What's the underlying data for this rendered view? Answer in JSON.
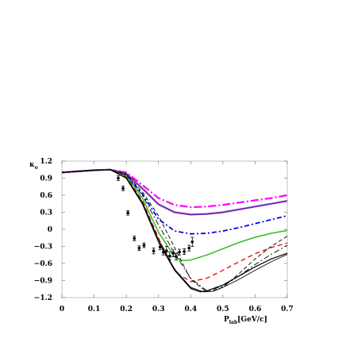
{
  "chart_data": {
    "type": "line",
    "xlabel": "P",
    "xlabel_sub": "lab",
    "xlabel_unit": "[GeV/c]",
    "ylabel": "κ",
    "ylabel_sub": "o",
    "xlim": [
      0,
      0.7
    ],
    "ylim": [
      -1.2,
      1.2
    ],
    "x_ticks": [
      "0",
      "0.1",
      "0.2",
      "0.3",
      "0.4",
      "0.5",
      "0.6",
      "0.7"
    ],
    "y_ticks": [
      "1.2",
      "0.9",
      "0.6",
      "0.3",
      "0",
      "−0.3",
      "−0.6",
      "−0.9",
      "−1.2"
    ],
    "grid": false,
    "series": [
      {
        "color": "#ff00ff",
        "dash": "10,3,2,3",
        "width": 2.2,
        "x": [
          0,
          0.05,
          0.1,
          0.15,
          0.2,
          0.25,
          0.3,
          0.35,
          0.4,
          0.45,
          0.5,
          0.55,
          0.6,
          0.65,
          0.7
        ],
        "y": [
          1.0,
          1.02,
          1.04,
          1.05,
          1.0,
          0.78,
          0.55,
          0.43,
          0.39,
          0.4,
          0.43,
          0.47,
          0.51,
          0.55,
          0.6
        ]
      },
      {
        "color": "#7a2fb0",
        "dash": "",
        "width": 2.2,
        "x": [
          0,
          0.05,
          0.1,
          0.15,
          0.2,
          0.25,
          0.3,
          0.35,
          0.4,
          0.45,
          0.5,
          0.55,
          0.6,
          0.65,
          0.7
        ],
        "y": [
          1.0,
          1.02,
          1.04,
          1.05,
          0.98,
          0.72,
          0.44,
          0.3,
          0.26,
          0.27,
          0.3,
          0.35,
          0.4,
          0.45,
          0.5
        ]
      },
      {
        "color": "#0000ee",
        "dash": "6,3,2,3",
        "width": 1.8,
        "x": [
          0,
          0.05,
          0.1,
          0.15,
          0.2,
          0.25,
          0.3,
          0.35,
          0.4,
          0.45,
          0.5,
          0.55,
          0.6,
          0.65,
          0.7
        ],
        "y": [
          1.0,
          1.02,
          1.04,
          1.05,
          0.96,
          0.62,
          0.18,
          -0.03,
          -0.08,
          -0.07,
          -0.03,
          0.03,
          0.1,
          0.17,
          0.24
        ]
      },
      {
        "color": "#33bb22",
        "dash": "",
        "width": 1.5,
        "x": [
          0,
          0.05,
          0.1,
          0.15,
          0.2,
          0.25,
          0.3,
          0.35,
          0.37,
          0.4,
          0.45,
          0.5,
          0.55,
          0.6,
          0.65,
          0.7
        ],
        "y": [
          1.0,
          1.02,
          1.04,
          1.05,
          0.94,
          0.55,
          -0.05,
          -0.48,
          -0.55,
          -0.54,
          -0.45,
          -0.34,
          -0.23,
          -0.14,
          -0.07,
          -0.02
        ]
      },
      {
        "color": "#ee0000",
        "dash": "6,4",
        "width": 1.3,
        "x": [
          0,
          0.05,
          0.1,
          0.15,
          0.2,
          0.25,
          0.3,
          0.33,
          0.36,
          0.4,
          0.45,
          0.5,
          0.55,
          0.6,
          0.65,
          0.7
        ],
        "y": [
          1.0,
          1.02,
          1.04,
          1.05,
          0.92,
          0.5,
          -0.15,
          -0.52,
          -0.78,
          -0.92,
          -0.86,
          -0.72,
          -0.57,
          -0.43,
          -0.32,
          -0.24
        ]
      },
      {
        "color": "#000000",
        "dash": "",
        "width": 1.2,
        "x": [
          0,
          0.05,
          0.1,
          0.15,
          0.2,
          0.25,
          0.3,
          0.35,
          0.4,
          0.43,
          0.45,
          0.5,
          0.55,
          0.6,
          0.65,
          0.7
        ],
        "y": [
          1.0,
          1.02,
          1.04,
          1.05,
          0.9,
          0.45,
          -0.22,
          -0.72,
          -1.04,
          -1.1,
          -1.08,
          -0.98,
          -0.82,
          -0.66,
          -0.52,
          -0.42
        ]
      },
      {
        "color": "#000000",
        "dash": "",
        "width": 0.9,
        "x": [
          0,
          0.05,
          0.1,
          0.15,
          0.2,
          0.25,
          0.3,
          0.35,
          0.4,
          0.44,
          0.47,
          0.5,
          0.55,
          0.6,
          0.65,
          0.7
        ],
        "y": [
          1.0,
          1.02,
          1.04,
          1.05,
          0.91,
          0.48,
          -0.18,
          -0.7,
          -1.02,
          -1.1,
          -1.09,
          -1.02,
          -0.88,
          -0.72,
          -0.57,
          -0.44
        ]
      },
      {
        "color": "#000000",
        "dash": "7,3,2,3",
        "width": 0.9,
        "x": [
          0,
          0.05,
          0.1,
          0.15,
          0.2,
          0.25,
          0.3,
          0.35,
          0.4,
          0.45,
          0.5,
          0.55,
          0.6,
          0.65,
          0.7
        ],
        "y": [
          1.0,
          1.02,
          1.04,
          1.05,
          0.95,
          0.6,
          0.08,
          -0.42,
          -0.86,
          -1.08,
          -1.0,
          -0.82,
          -0.62,
          -0.44,
          -0.28
        ]
      },
      {
        "color": "#000000",
        "dash": "5,3",
        "width": 0.9,
        "x": [
          0,
          0.05,
          0.1,
          0.15,
          0.2,
          0.25,
          0.3,
          0.35,
          0.4,
          0.45,
          0.5,
          0.55,
          0.6,
          0.65,
          0.7
        ],
        "y": [
          1.0,
          1.02,
          1.04,
          1.05,
          0.97,
          0.66,
          0.24,
          -0.32,
          -0.88,
          -1.1,
          -1.02,
          -0.78,
          -0.52,
          -0.3,
          -0.12
        ]
      }
    ],
    "points": [
      {
        "x": 0.175,
        "y": 0.9,
        "err": 0.04
      },
      {
        "x": 0.19,
        "y": 0.72,
        "err": 0.04
      },
      {
        "x": 0.205,
        "y": 0.29,
        "err": 0.04
      },
      {
        "x": 0.225,
        "y": -0.16,
        "err": 0.04
      },
      {
        "x": 0.24,
        "y": -0.33,
        "err": 0.04
      },
      {
        "x": 0.255,
        "y": -0.28,
        "err": 0.04
      },
      {
        "x": 0.285,
        "y": -0.38,
        "err": 0.05
      },
      {
        "x": 0.305,
        "y": -0.31,
        "err": 0.05
      },
      {
        "x": 0.315,
        "y": -0.4,
        "err": 0.05
      },
      {
        "x": 0.325,
        "y": -0.38,
        "err": 0.08
      },
      {
        "x": 0.335,
        "y": -0.47,
        "err": 0.07
      },
      {
        "x": 0.345,
        "y": -0.42,
        "err": 0.06
      },
      {
        "x": 0.355,
        "y": -0.48,
        "err": 0.06
      },
      {
        "x": 0.365,
        "y": -0.4,
        "err": 0.05
      },
      {
        "x": 0.38,
        "y": -0.39,
        "err": 0.05
      },
      {
        "x": 0.395,
        "y": -0.33,
        "err": 0.05
      },
      {
        "x": 0.405,
        "y": -0.22,
        "err": 0.08
      }
    ]
  }
}
